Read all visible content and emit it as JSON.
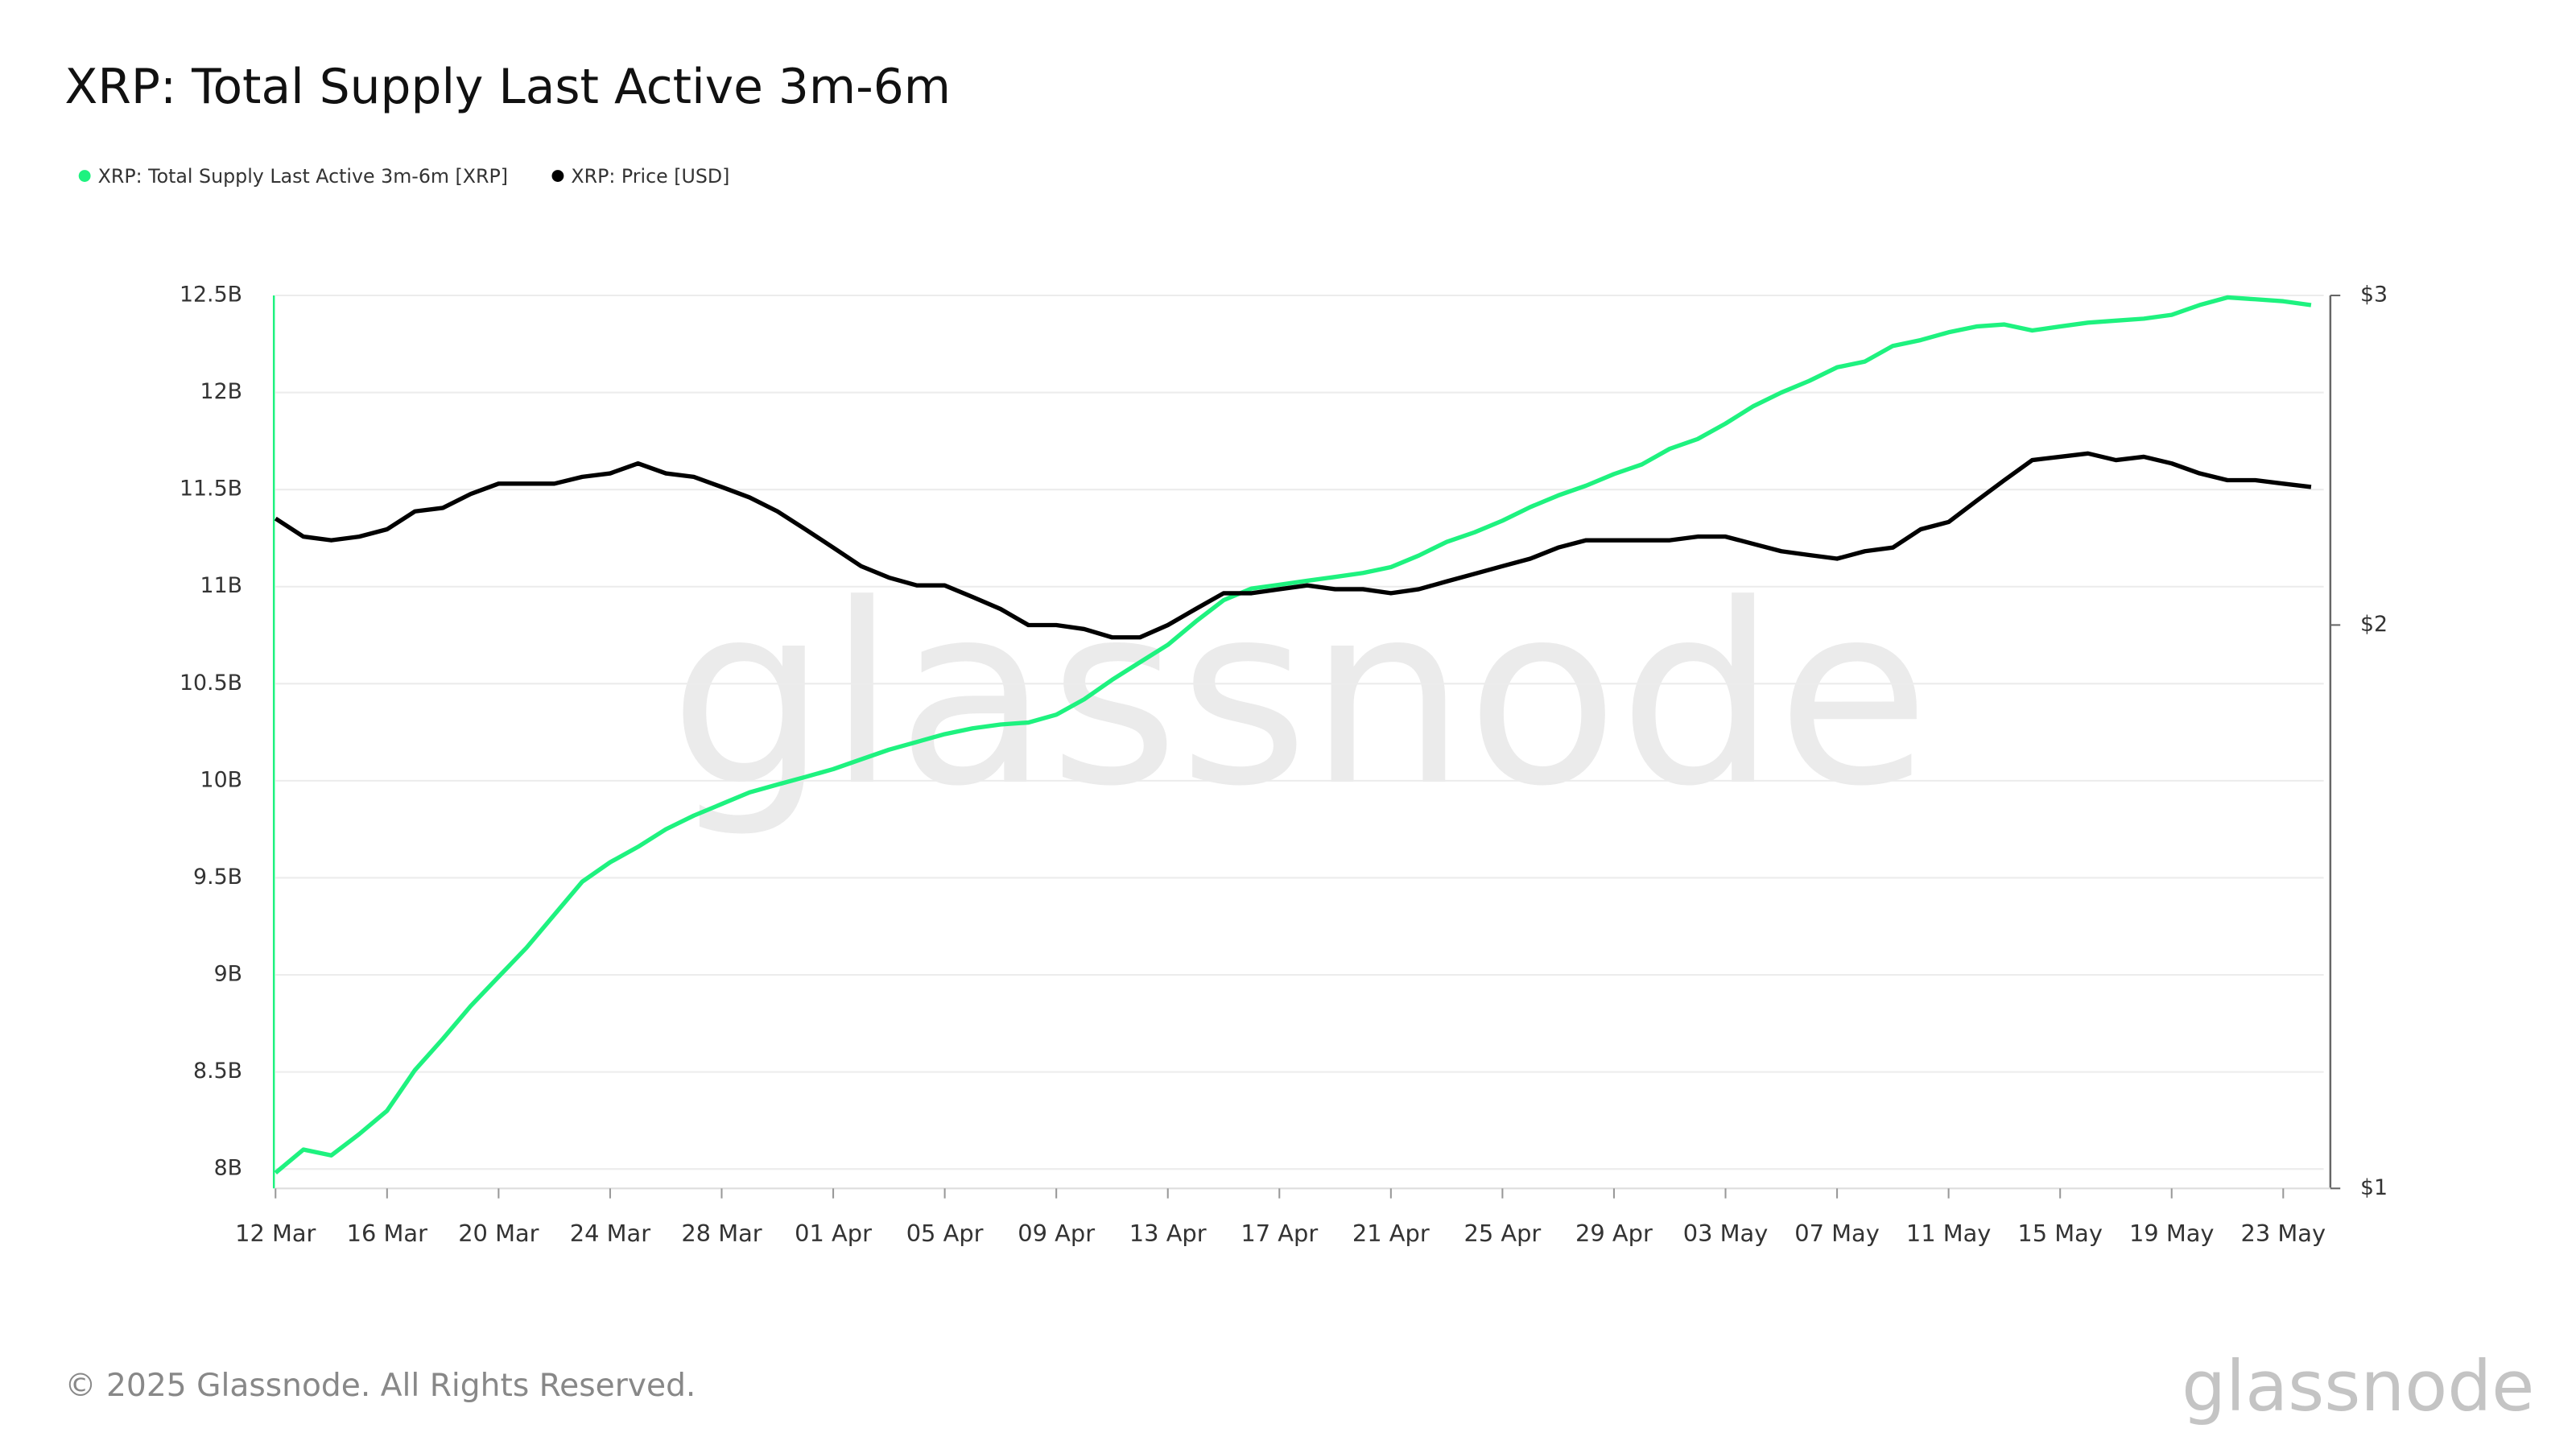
{
  "chart_data": {
    "type": "line",
    "title": "XRP: Total Supply Last Active 3m-6m",
    "watermark": "glassnode",
    "footer": "© 2025 Glassnode. All Rights Reserved.",
    "categories": [
      "12 Mar",
      "13 Mar",
      "14 Mar",
      "15 Mar",
      "16 Mar",
      "17 Mar",
      "18 Mar",
      "19 Mar",
      "20 Mar",
      "21 Mar",
      "22 Mar",
      "23 Mar",
      "24 Mar",
      "25 Mar",
      "26 Mar",
      "27 Mar",
      "28 Mar",
      "29 Mar",
      "30 Mar",
      "31 Mar",
      "01 Apr",
      "02 Apr",
      "03 Apr",
      "04 Apr",
      "05 Apr",
      "06 Apr",
      "07 Apr",
      "08 Apr",
      "09 Apr",
      "10 Apr",
      "11 Apr",
      "12 Apr",
      "13 Apr",
      "14 Apr",
      "15 Apr",
      "16 Apr",
      "17 Apr",
      "18 Apr",
      "19 Apr",
      "20 Apr",
      "21 Apr",
      "22 Apr",
      "23 Apr",
      "24 Apr",
      "25 Apr",
      "26 Apr",
      "27 Apr",
      "28 Apr",
      "29 Apr",
      "30 Apr",
      "01 May",
      "02 May",
      "03 May",
      "04 May",
      "05 May",
      "06 May",
      "07 May",
      "08 May",
      "09 May",
      "10 May",
      "11 May",
      "12 May",
      "13 May",
      "14 May",
      "15 May",
      "16 May",
      "17 May",
      "18 May",
      "19 May",
      "20 May",
      "21 May",
      "22 May",
      "23 May",
      "24 May"
    ],
    "series": [
      {
        "name": "XRP: Total Supply Last Active 3m-6m [XRP]",
        "color": "#1ef27f",
        "axis": "y",
        "values": [
          7.98,
          8.1,
          8.07,
          8.18,
          8.3,
          8.51,
          8.67,
          8.84,
          8.99,
          9.14,
          9.31,
          9.48,
          9.58,
          9.66,
          9.75,
          9.82,
          9.88,
          9.94,
          9.98,
          10.02,
          10.06,
          10.11,
          10.16,
          10.2,
          10.24,
          10.27,
          10.29,
          10.3,
          10.34,
          10.42,
          10.52,
          10.61,
          10.7,
          10.82,
          10.93,
          10.99,
          11.01,
          11.03,
          11.05,
          11.07,
          11.1,
          11.16,
          11.23,
          11.28,
          11.34,
          11.41,
          11.47,
          11.52,
          11.58,
          11.63,
          11.71,
          11.76,
          11.84,
          11.93,
          12.0,
          12.06,
          12.13,
          12.16,
          12.24,
          12.27,
          12.31,
          12.34,
          12.35,
          12.32,
          12.34,
          12.36,
          12.37,
          12.38,
          12.4,
          12.45,
          12.49,
          12.48,
          12.47,
          12.45
        ]
      },
      {
        "name": "XRP: Price [USD]",
        "color": "#000000",
        "axis": "y2",
        "values": [
          2.28,
          2.23,
          2.22,
          2.23,
          2.25,
          2.3,
          2.31,
          2.35,
          2.38,
          2.38,
          2.38,
          2.4,
          2.41,
          2.44,
          2.41,
          2.4,
          2.37,
          2.34,
          2.3,
          2.25,
          2.2,
          2.15,
          2.12,
          2.1,
          2.1,
          2.07,
          2.04,
          2.0,
          2.0,
          1.99,
          1.97,
          1.97,
          2.0,
          2.04,
          2.08,
          2.08,
          2.09,
          2.1,
          2.09,
          2.09,
          2.08,
          2.09,
          2.11,
          2.13,
          2.15,
          2.17,
          2.2,
          2.22,
          2.22,
          2.22,
          2.22,
          2.23,
          2.23,
          2.21,
          2.19,
          2.18,
          2.17,
          2.19,
          2.2,
          2.25,
          2.27,
          2.33,
          2.39,
          2.45,
          2.46,
          2.47,
          2.45,
          2.46,
          2.44,
          2.41,
          2.39,
          2.39,
          2.38,
          2.37
        ]
      }
    ],
    "ylim": [
      7.9,
      12.5
    ],
    "yticks": [
      {
        "value": 8,
        "label": "8B"
      },
      {
        "value": 8.5,
        "label": "8.5B"
      },
      {
        "value": 9,
        "label": "9B"
      },
      {
        "value": 9.5,
        "label": "9.5B"
      },
      {
        "value": 10,
        "label": "10B"
      },
      {
        "value": 10.5,
        "label": "10.5B"
      },
      {
        "value": 11,
        "label": "11B"
      },
      {
        "value": 11.5,
        "label": "11.5B"
      },
      {
        "value": 12,
        "label": "12B"
      },
      {
        "value": 12.5,
        "label": "12.5B"
      }
    ],
    "y2lim": [
      1,
      3
    ],
    "y2ticks": [
      {
        "value": 1,
        "label": "$1"
      },
      {
        "value": 2,
        "label": "$2"
      },
      {
        "value": 3,
        "label": "$3"
      }
    ],
    "y2log": true,
    "grid": true,
    "legend": "top-left"
  }
}
